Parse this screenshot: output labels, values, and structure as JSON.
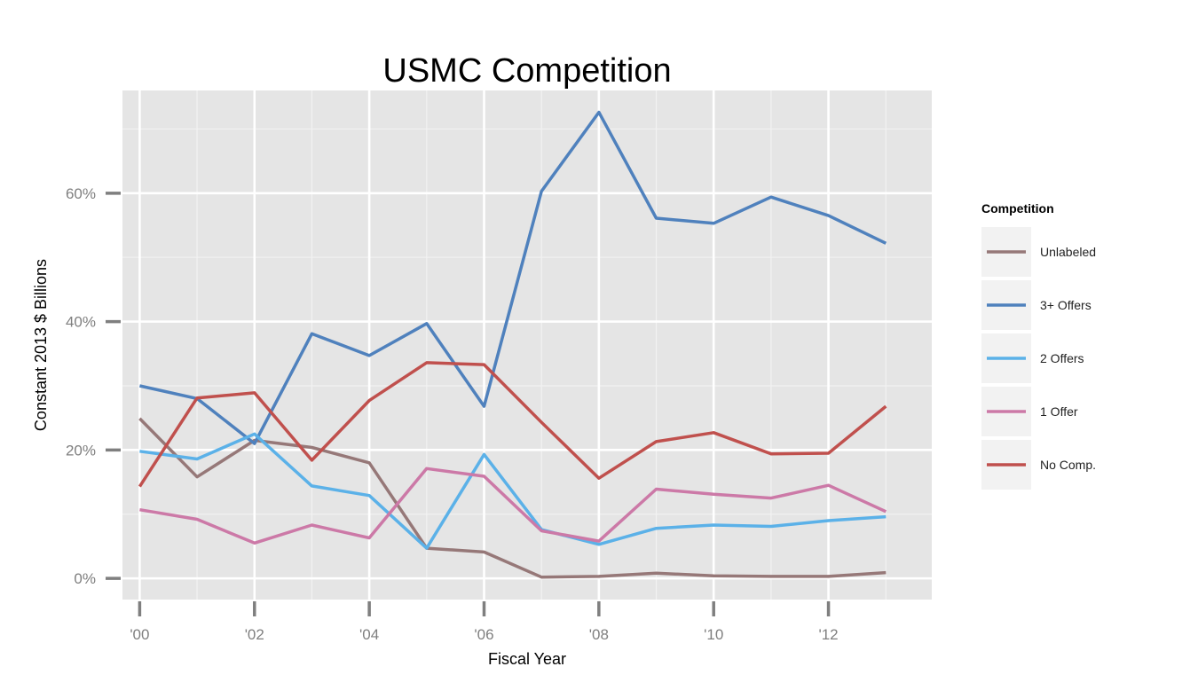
{
  "chart_data": {
    "type": "line",
    "title": "USMC Competition",
    "xlabel": "Fiscal Year",
    "ylabel": "Constant 2013 $ Billions",
    "x": [
      2000,
      2001,
      2002,
      2003,
      2004,
      2005,
      2006,
      2007,
      2008,
      2009,
      2010,
      2011,
      2012,
      2013
    ],
    "x_ticks": [
      2000,
      2002,
      2004,
      2006,
      2008,
      2010,
      2012
    ],
    "x_tick_labels": [
      "'00",
      "'02",
      "'04",
      "'06",
      "'08",
      "'10",
      "'12"
    ],
    "xlim": [
      1999.7,
      2013.8
    ],
    "y_ticks": [
      0,
      20,
      40,
      60
    ],
    "y_tick_labels": [
      "0%",
      "20%",
      "40%",
      "60%"
    ],
    "ylim": [
      -3.3,
      76
    ],
    "grid": true,
    "legend_position": "right",
    "legend_title": "Competition",
    "series": [
      {
        "name": "Unlabeled",
        "color": "#967878",
        "values": [
          24.9,
          15.8,
          21.5,
          20.4,
          18.0,
          4.7,
          4.1,
          0.2,
          0.3,
          0.8,
          0.4,
          0.3,
          0.3,
          0.9
        ]
      },
      {
        "name": "3+ Offers",
        "color": "#4f81bd",
        "values": [
          30.0,
          28.0,
          21.0,
          38.1,
          34.7,
          39.7,
          26.8,
          60.3,
          72.6,
          56.1,
          55.3,
          59.4,
          56.5,
          52.2
        ]
      },
      {
        "name": "2 Offers",
        "color": "#5bb1e8",
        "values": [
          19.8,
          18.6,
          22.5,
          14.4,
          12.9,
          4.7,
          19.3,
          7.6,
          5.3,
          7.8,
          8.3,
          8.1,
          9.0,
          9.6
        ]
      },
      {
        "name": "1 Offer",
        "color": "#cc79a7",
        "values": [
          10.7,
          9.2,
          5.5,
          8.3,
          6.3,
          17.1,
          15.9,
          7.4,
          5.8,
          13.9,
          13.1,
          12.5,
          14.5,
          10.4
        ]
      },
      {
        "name": "No Comp.",
        "color": "#c0504d",
        "values": [
          14.3,
          28.1,
          28.9,
          18.4,
          27.7,
          33.6,
          33.3,
          24.3,
          15.6,
          21.3,
          22.7,
          19.4,
          19.5,
          26.8
        ]
      }
    ]
  }
}
